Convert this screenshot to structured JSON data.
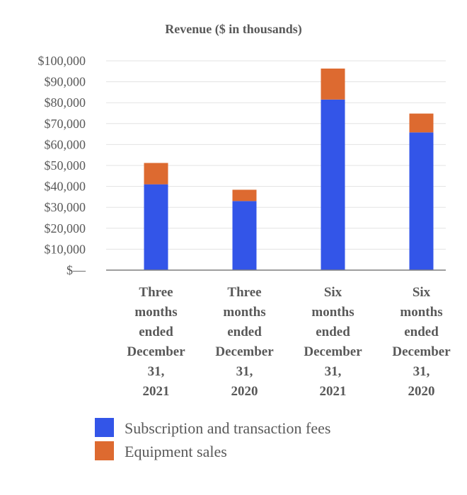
{
  "chart_data": {
    "type": "bar",
    "stacked": true,
    "title": "Revenue ($ in thousands)",
    "xlabel": "",
    "ylabel": "",
    "ylim": [
      0,
      100000
    ],
    "yticks": [
      "$—",
      "$10,000",
      "$20,000",
      "$30,000",
      "$40,000",
      "$50,000",
      "$60,000",
      "$70,000",
      "$80,000",
      "$90,000",
      "$100,000"
    ],
    "categories": [
      [
        "Three",
        "months",
        "ended",
        "December",
        "31,",
        "2021"
      ],
      [
        "Three",
        "months",
        "ended",
        "December",
        "31,",
        "2020"
      ],
      [
        "Six",
        "months",
        "ended",
        "December",
        "31,",
        "2021"
      ],
      [
        "Six",
        "months",
        "ended",
        "December",
        "31,",
        "2020"
      ]
    ],
    "series": [
      {
        "name": "Subscription and transaction fees",
        "color": "#3355e8",
        "values": [
          41000,
          33000,
          81500,
          65800
        ]
      },
      {
        "name": "Equipment sales",
        "color": "#dd6a30",
        "values": [
          10200,
          5400,
          14800,
          9000
        ]
      }
    ],
    "grid": true,
    "legend": "bottom-left"
  }
}
